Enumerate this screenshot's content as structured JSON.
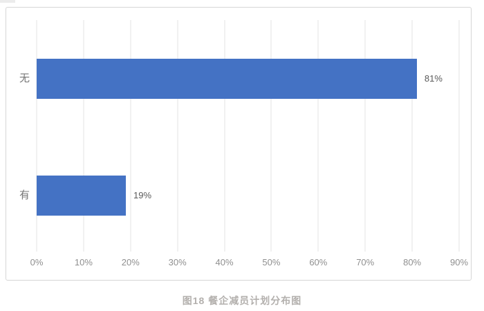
{
  "figure": {
    "caption": "图18 餐企减员计划分布图"
  },
  "chart_data": {
    "type": "bar",
    "orientation": "horizontal",
    "title": "",
    "xlabel": "",
    "ylabel": "",
    "categories": [
      "无",
      "有"
    ],
    "values": [
      81,
      19
    ],
    "value_labels": [
      "81%",
      "19%"
    ],
    "xlim": [
      0,
      90
    ],
    "x_tick_values": [
      0,
      10,
      20,
      30,
      40,
      50,
      60,
      70,
      80,
      90
    ],
    "x_tick_labels": [
      "0%",
      "10%",
      "20%",
      "30%",
      "40%",
      "50%",
      "60%",
      "70%",
      "80%",
      "90%"
    ],
    "grid": "vertical-on",
    "legend": "none",
    "bar_color": "#4472C4"
  }
}
